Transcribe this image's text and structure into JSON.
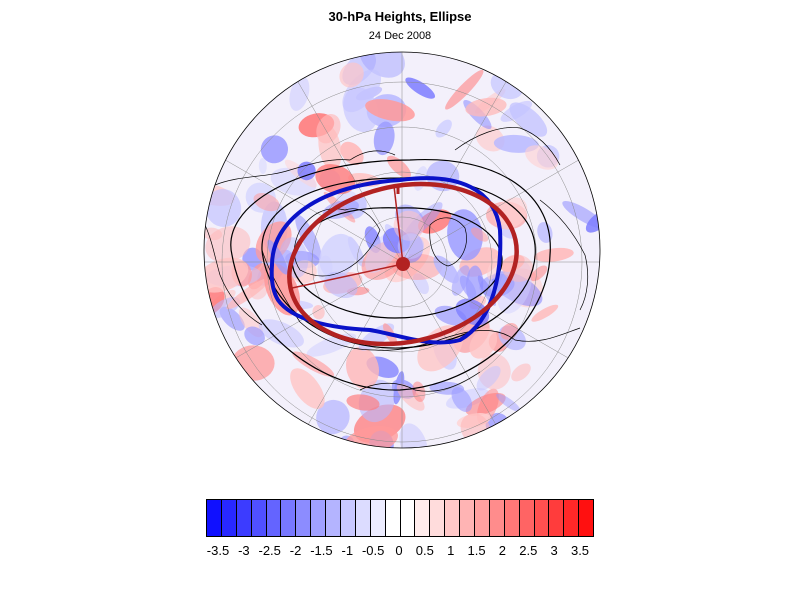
{
  "title": "30-hPa Heights, Ellipse",
  "subtitle": "24 Dec 2008",
  "map": {
    "projection": "north-polar-orthographic",
    "overlays": [
      {
        "name": "Geopotential height contour",
        "color": "#000000"
      },
      {
        "name": "Vortex edge contour",
        "color": "#0a12c8"
      },
      {
        "name": "Fitted ellipse",
        "color": "#b22222"
      }
    ]
  },
  "colorbar": {
    "labels": [
      "-3.5",
      "-3",
      "-2.5",
      "-2",
      "-1.5",
      "-1",
      "-0.5",
      "0",
      "0.5",
      "1",
      "1.5",
      "2",
      "2.5",
      "3",
      "3.5"
    ],
    "colors": [
      "#1010ff",
      "#2828ff",
      "#3c3cff",
      "#5050ff",
      "#6464ff",
      "#7878ff",
      "#8c8cff",
      "#a0a0ff",
      "#b4b4ff",
      "#c8c8ff",
      "#dcdcff",
      "#ececff",
      "#ffffff",
      "#ffffff",
      "#ffecec",
      "#ffdcdc",
      "#ffc8c8",
      "#ffb4b4",
      "#ffa0a0",
      "#ff8c8c",
      "#ff7878",
      "#ff6464",
      "#ff5050",
      "#ff3c3c",
      "#ff2828",
      "#ff1010"
    ]
  }
}
